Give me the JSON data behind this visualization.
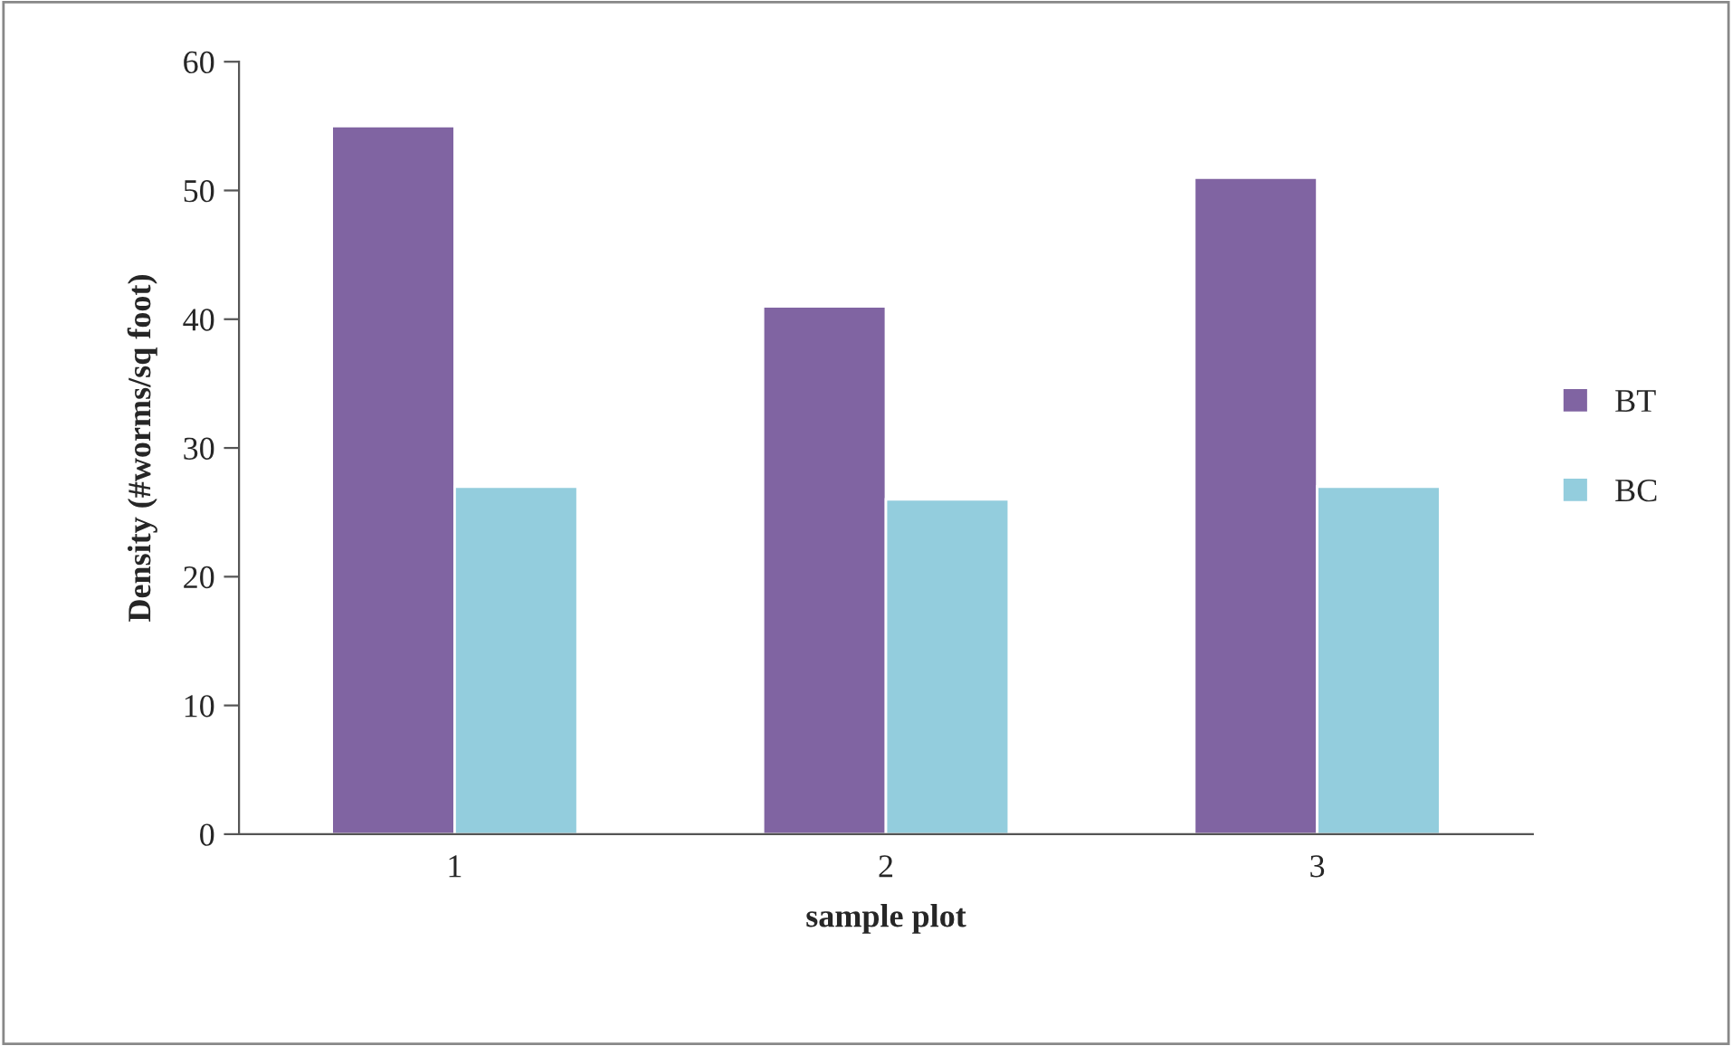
{
  "chart_data": {
    "type": "bar",
    "xlabel": "sample plot",
    "ylabel": "Density (#worms/sq foot)",
    "categories": [
      "1",
      "2",
      "3"
    ],
    "series": [
      {
        "name": "BT",
        "color": "#8064a2",
        "values": [
          55,
          41,
          51
        ]
      },
      {
        "name": "BC",
        "color": "#93cddd",
        "values": [
          27,
          26,
          27
        ]
      }
    ],
    "ylim": [
      0,
      60
    ],
    "yticks": [
      0,
      10,
      20,
      30,
      40,
      50,
      60
    ],
    "grid": false,
    "legend": "right"
  }
}
